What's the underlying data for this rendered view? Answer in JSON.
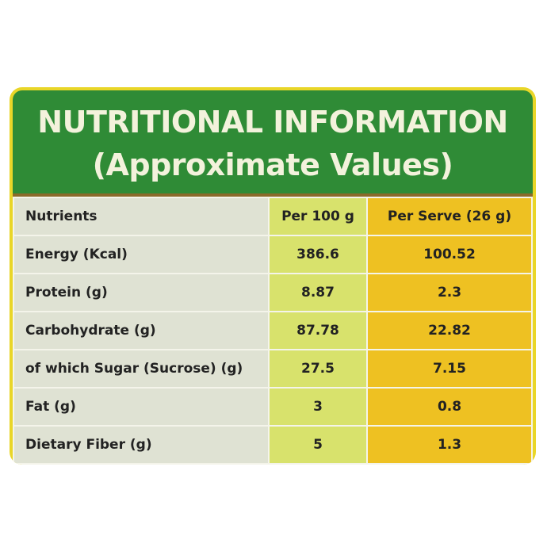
{
  "header": {
    "title": "NUTRITIONAL INFORMATION",
    "subtitle": "(Approximate Values)"
  },
  "table": {
    "columns": [
      "Nutrients",
      "Per 100 g",
      "Per Serve (26 g)"
    ],
    "rows": [
      [
        "Energy (Kcal)",
        "386.6",
        "100.52"
      ],
      [
        "Protein (g)",
        "8.87",
        "2.3"
      ],
      [
        "Carbohydrate (g)",
        "87.78",
        "22.82"
      ],
      [
        "of which Sugar (Sucrose) (g)",
        "27.5",
        "7.15"
      ],
      [
        "Fat (g)",
        "3",
        "0.8"
      ],
      [
        "Dietary Fiber (g)",
        "5",
        "1.3"
      ]
    ]
  }
}
